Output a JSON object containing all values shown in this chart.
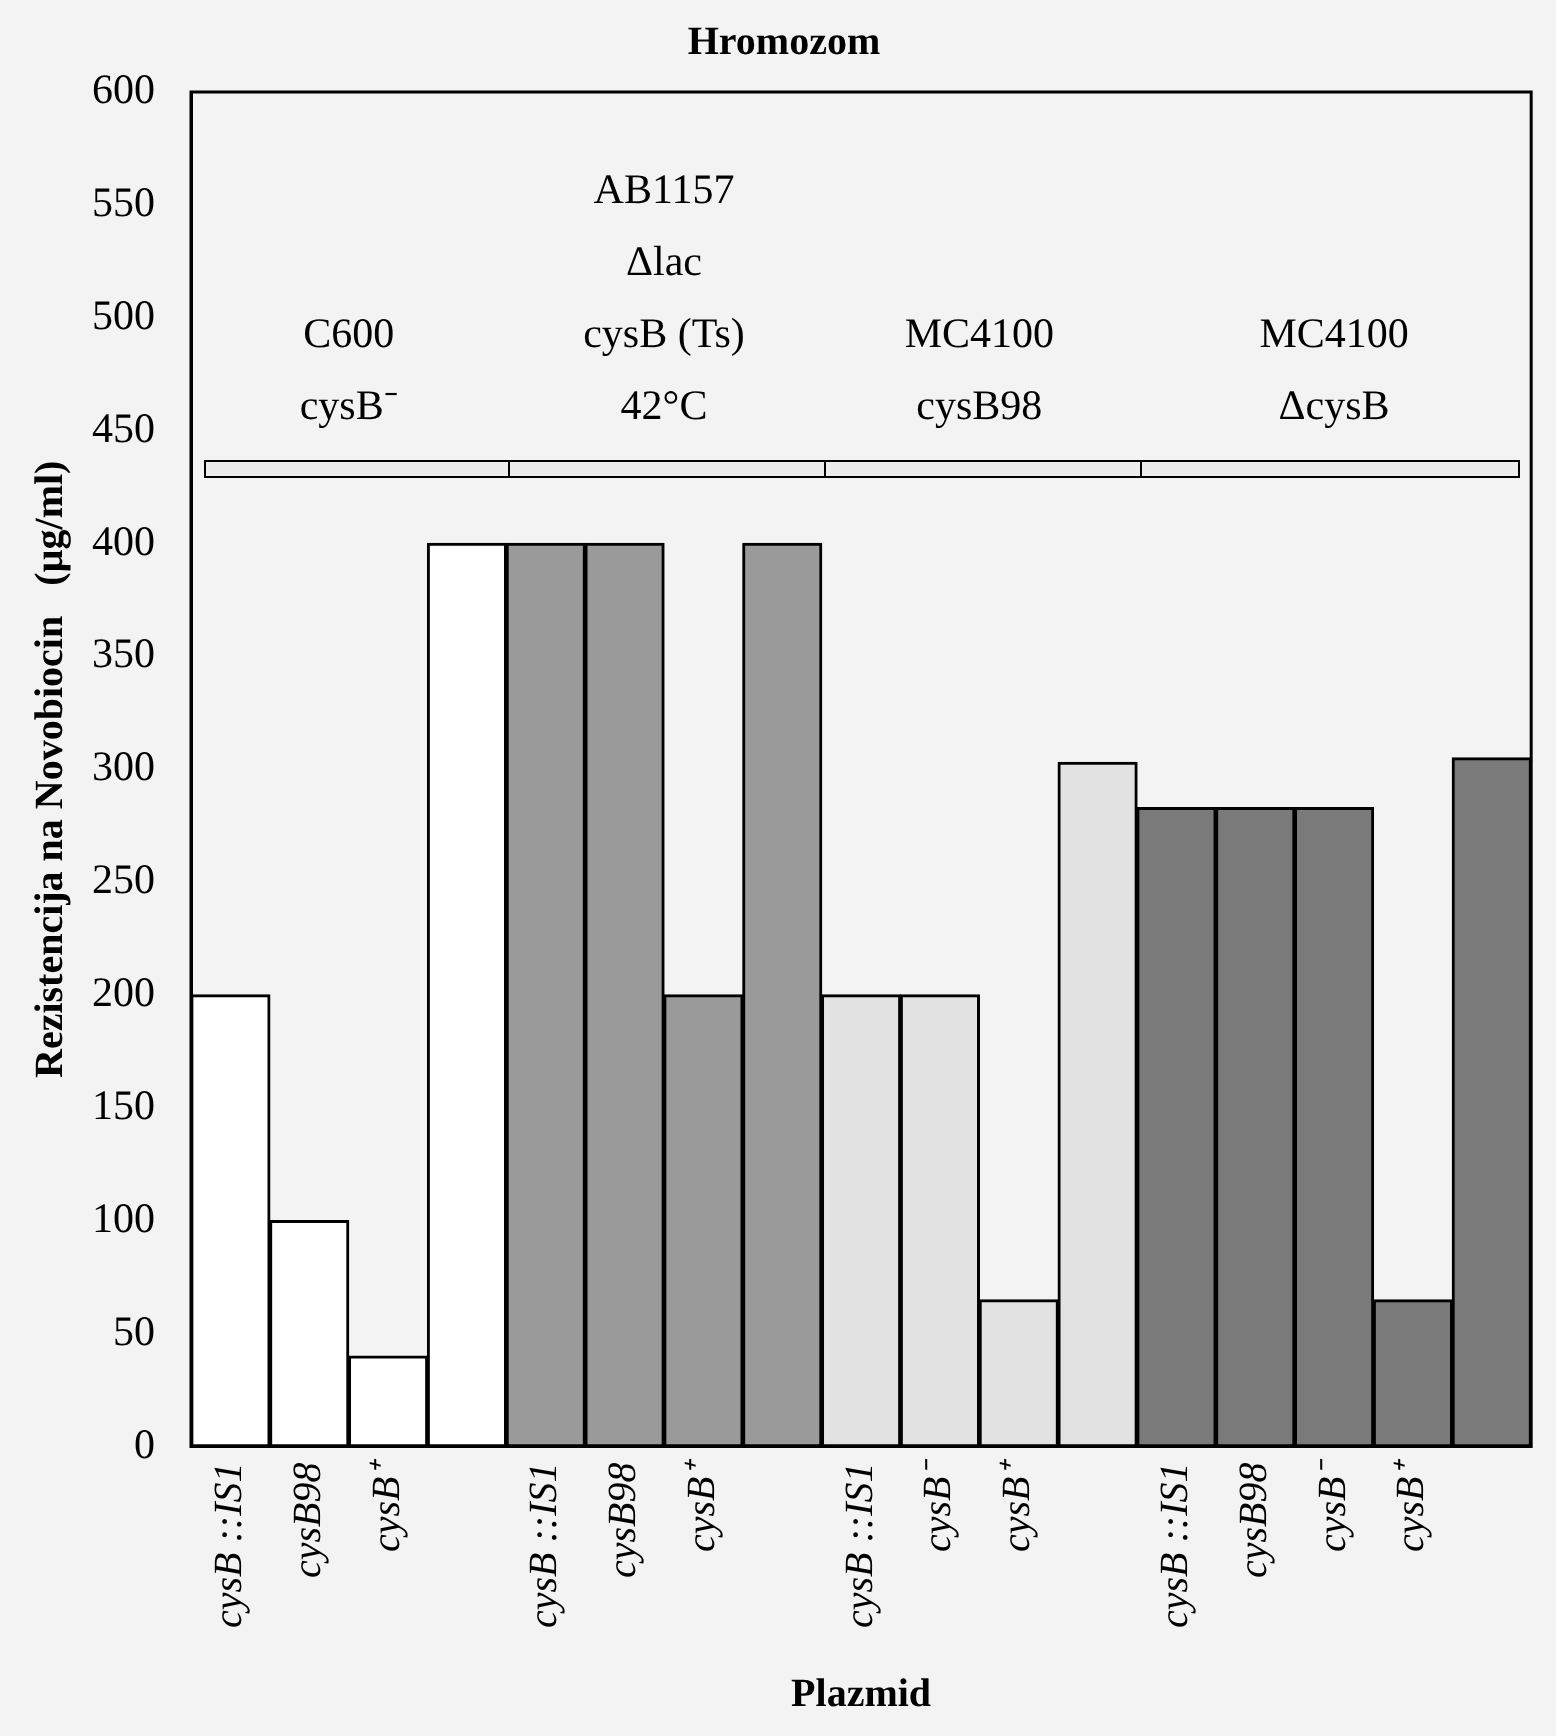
{
  "chart_data": {
    "type": "bar",
    "title": "Hromozom",
    "xlabel": "Plazmid",
    "ylabel": "Rezistencija na Novobiocin   (µg/ml)",
    "categories": [
      "cysB ::IS1",
      "cysB98",
      "cysB⁺",
      null,
      "cysB ::IS1",
      "cysB98",
      "cysB⁺",
      null,
      "cysB ::IS1",
      "cysB⁻",
      "cysB⁺",
      null,
      "cysB ::IS1",
      "cysB98",
      "cysB⁻",
      "cysB⁺",
      null
    ],
    "values": [
      200,
      100,
      40,
      400,
      400,
      400,
      200,
      400,
      200,
      200,
      65,
      303,
      283,
      283,
      283,
      65,
      305
    ],
    "colors": [
      "#ffffff",
      "#ffffff",
      "#ffffff",
      "#ffffff",
      "#9a9a9a",
      "#9a9a9a",
      "#9a9a9a",
      "#9a9a9a",
      "#e2e2e2",
      "#e2e2e2",
      "#e2e2e2",
      "#e2e2e2",
      "#7a7a7a",
      "#7a7a7a",
      "#7a7a7a",
      "#7a7a7a",
      "#7a7a7a"
    ],
    "ylim": [
      0,
      600
    ],
    "yticks": [
      0,
      50,
      100,
      150,
      200,
      250,
      300,
      350,
      400,
      450,
      500,
      550,
      600
    ],
    "grid": false,
    "legend": false,
    "annotations": [
      "C600\ncysB⁻",
      "AB1157\nΔlac\ncysB (Ts)\n42°C",
      "MC4100\ncysB98",
      "MC4100\nΔcysB"
    ]
  }
}
